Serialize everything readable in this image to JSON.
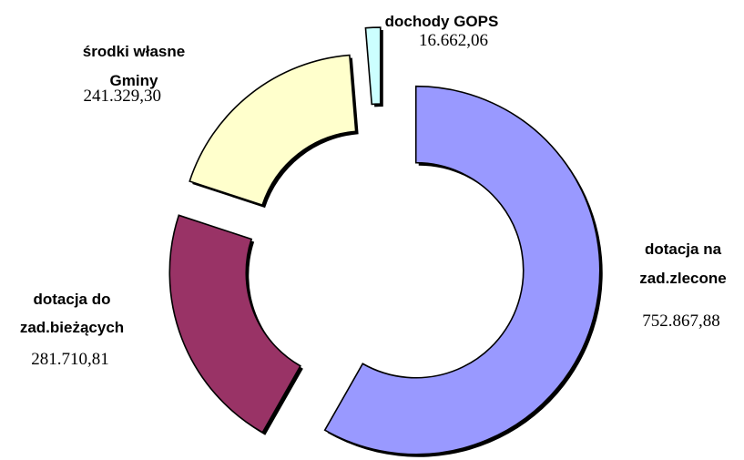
{
  "chart_data": {
    "type": "pie",
    "style": "exploded doughnut",
    "title": "",
    "slices": [
      {
        "name": "dotacja na zad.zlecone",
        "label_lines": [
          "dotacja na",
          "zad.zlecone"
        ],
        "value_label": "752.867,88",
        "value": 752867.88,
        "color": "#9999ff"
      },
      {
        "name": "dotacja do zad.bieżących",
        "label_lines": [
          "dotacja do",
          "zad.bieżących"
        ],
        "value_label": "281.710,81",
        "value": 281710.81,
        "color": "#993366"
      },
      {
        "name": "środki własne Gminy",
        "label_lines": [
          "środki własne",
          "Gminy"
        ],
        "value_label": "241.329,30",
        "value": 241329.3,
        "color": "#ffffcc"
      },
      {
        "name": "dochody GOPS",
        "label_lines": [
          "dochody GOPS"
        ],
        "value_label": "16.662,06",
        "value": 16662.06,
        "color": "#ccffff"
      }
    ],
    "legend": "none"
  }
}
